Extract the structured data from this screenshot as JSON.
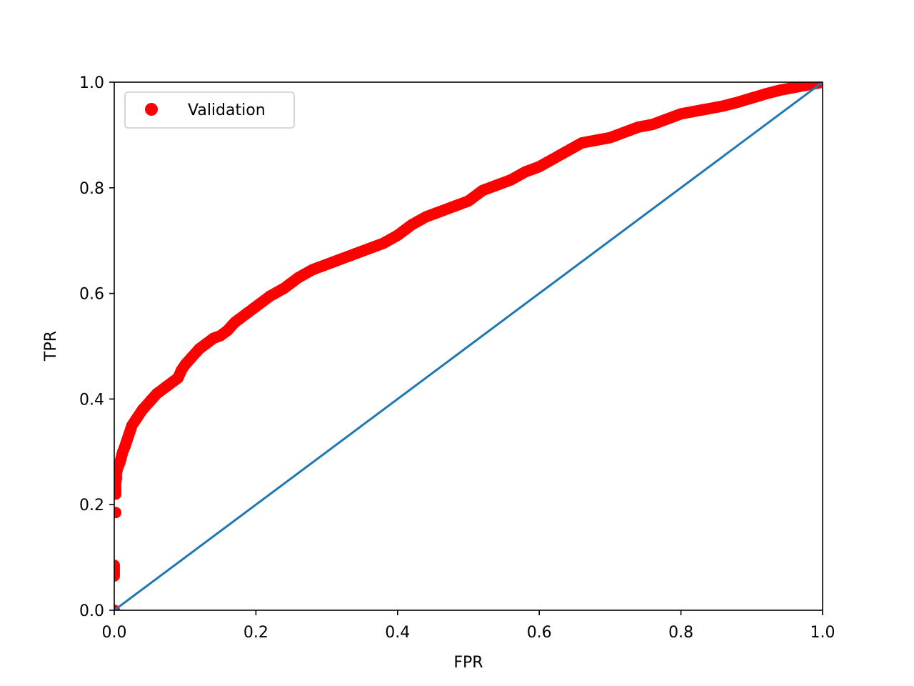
{
  "chart_data": {
    "type": "scatter",
    "title": "",
    "xlabel": "FPR",
    "ylabel": "TPR",
    "xlim": [
      0.0,
      1.0
    ],
    "ylim": [
      0.0,
      1.0
    ],
    "xticks": [
      "0.0",
      "0.2",
      "0.4",
      "0.6",
      "0.8",
      "1.0"
    ],
    "yticks": [
      "0.0",
      "0.2",
      "0.4",
      "0.6",
      "0.8",
      "1.0"
    ],
    "grid": false,
    "legend": {
      "placement": "top-left",
      "entries": [
        "Validation"
      ]
    },
    "series": [
      {
        "name": "Validation",
        "kind": "scatter",
        "color": "#ff0000",
        "x": [
          0.0,
          0.0,
          0.0,
          0.0,
          0.002,
          0.002,
          0.002,
          0.003,
          0.003,
          0.005,
          0.008,
          0.01,
          0.012,
          0.015,
          0.02,
          0.025,
          0.03,
          0.035,
          0.04,
          0.05,
          0.06,
          0.07,
          0.08,
          0.09,
          0.095,
          0.1,
          0.11,
          0.12,
          0.13,
          0.14,
          0.15,
          0.16,
          0.17,
          0.18,
          0.19,
          0.2,
          0.22,
          0.24,
          0.26,
          0.28,
          0.3,
          0.32,
          0.34,
          0.36,
          0.38,
          0.4,
          0.42,
          0.44,
          0.46,
          0.48,
          0.5,
          0.52,
          0.54,
          0.56,
          0.58,
          0.6,
          0.62,
          0.64,
          0.66,
          0.68,
          0.7,
          0.72,
          0.74,
          0.76,
          0.78,
          0.8,
          0.82,
          0.84,
          0.86,
          0.88,
          0.9,
          0.92,
          0.94,
          0.96,
          0.98,
          1.0
        ],
        "y": [
          0.0,
          0.065,
          0.07,
          0.085,
          0.185,
          0.22,
          0.24,
          0.25,
          0.26,
          0.27,
          0.28,
          0.29,
          0.3,
          0.31,
          0.33,
          0.35,
          0.36,
          0.37,
          0.38,
          0.395,
          0.41,
          0.42,
          0.43,
          0.44,
          0.455,
          0.465,
          0.48,
          0.495,
          0.505,
          0.515,
          0.52,
          0.53,
          0.545,
          0.555,
          0.565,
          0.575,
          0.595,
          0.61,
          0.63,
          0.645,
          0.655,
          0.665,
          0.675,
          0.685,
          0.695,
          0.71,
          0.73,
          0.745,
          0.755,
          0.765,
          0.775,
          0.795,
          0.805,
          0.815,
          0.83,
          0.84,
          0.855,
          0.87,
          0.885,
          0.89,
          0.895,
          0.905,
          0.915,
          0.92,
          0.93,
          0.94,
          0.945,
          0.95,
          0.955,
          0.962,
          0.97,
          0.978,
          0.985,
          0.99,
          0.995,
          1.0
        ]
      },
      {
        "name": "",
        "kind": "line",
        "color": "#1f77b4",
        "x": [
          0.0,
          1.0
        ],
        "y": [
          0.0,
          1.0
        ]
      }
    ]
  }
}
